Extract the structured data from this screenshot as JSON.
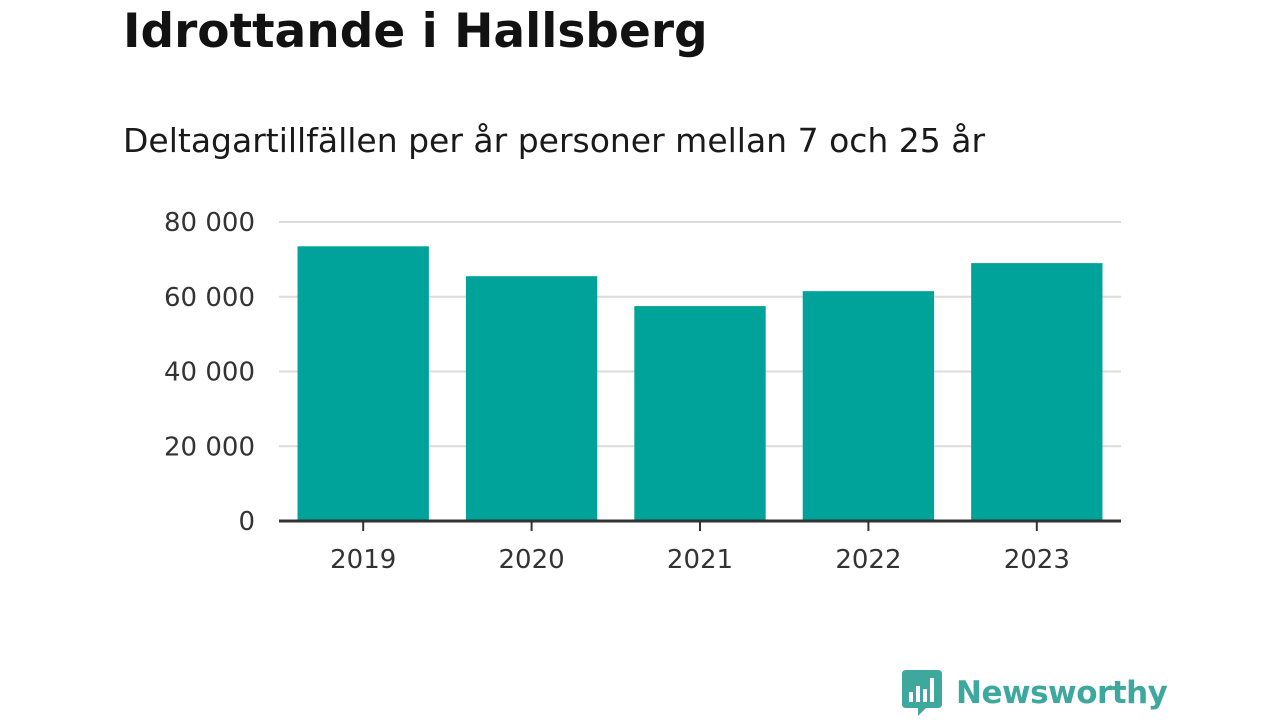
{
  "header": {
    "title": "Idrottande i Hallsberg",
    "subtitle": "Deltagartillfällen per år personer mellan 7 och 25 år"
  },
  "chart_data": {
    "type": "bar",
    "categories": [
      "2019",
      "2020",
      "2021",
      "2022",
      "2023"
    ],
    "values": [
      73500,
      65500,
      57500,
      61500,
      69000
    ],
    "ylim": [
      0,
      80000
    ],
    "yticks": [
      0,
      20000,
      40000,
      60000,
      80000
    ],
    "ytick_labels": [
      "0",
      "20 000",
      "40 000",
      "60 000",
      "80 000"
    ],
    "grid": true,
    "bar_color": "#00a39a"
  },
  "brand": {
    "name": "Newsworthy",
    "icon": "bar-chart-speech-bubble-icon",
    "color": "#3fa89e"
  }
}
